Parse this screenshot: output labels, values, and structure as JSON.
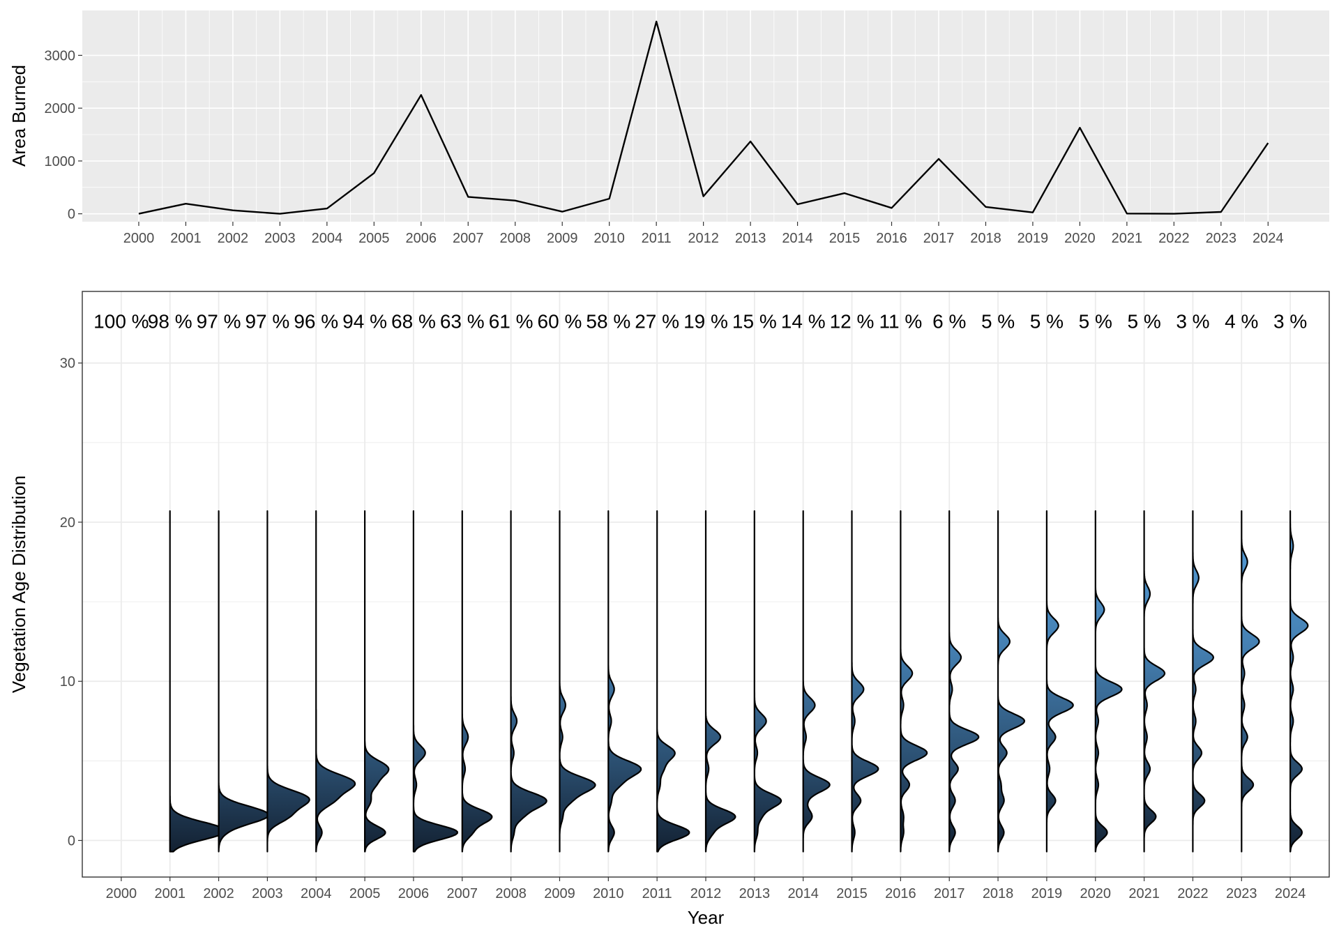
{
  "chart_data": [
    {
      "type": "line",
      "xlabel": "",
      "ylabel": "Area Burned",
      "x": [
        2000,
        2001,
        2002,
        2003,
        2004,
        2005,
        2006,
        2007,
        2008,
        2009,
        2010,
        2011,
        2012,
        2013,
        2014,
        2015,
        2016,
        2017,
        2018,
        2019,
        2020,
        2021,
        2022,
        2023,
        2024
      ],
      "y": [
        0,
        190,
        65,
        0,
        100,
        770,
        2250,
        320,
        250,
        40,
        285,
        3640,
        330,
        1370,
        180,
        390,
        110,
        1040,
        130,
        25,
        1630,
        5,
        0,
        35,
        1340
      ],
      "xlim": [
        1998.8,
        2025.3
      ],
      "ylim": [
        -150,
        3850
      ],
      "yticks": [
        0,
        1000,
        2000,
        3000
      ],
      "xticks": [
        2000,
        2001,
        2002,
        2003,
        2004,
        2005,
        2006,
        2007,
        2008,
        2009,
        2010,
        2011,
        2012,
        2013,
        2014,
        2015,
        2016,
        2017,
        2018,
        2019,
        2020,
        2021,
        2022,
        2023,
        2024
      ],
      "grid": true,
      "panel_background": "#ebebeb",
      "line_color": "#000000"
    },
    {
      "type": "ridgeline-halfviolin",
      "xlabel": "Year",
      "ylabel": "Vegetation Age Distribution",
      "categories": [
        2000,
        2001,
        2002,
        2003,
        2004,
        2005,
        2006,
        2007,
        2008,
        2009,
        2010,
        2011,
        2012,
        2013,
        2014,
        2015,
        2016,
        2017,
        2018,
        2019,
        2020,
        2021,
        2022,
        2023,
        2024
      ],
      "percent_labels": [
        "100 %",
        "98 %",
        "97 %",
        "97 %",
        "96 %",
        "94 %",
        "68 %",
        "63 %",
        "61 %",
        "60 %",
        "58 %",
        "27 %",
        "19 %",
        "15 %",
        "14 %",
        "12 %",
        "11 %",
        "6 %",
        "5 %",
        "5 %",
        "5 %",
        "5 %",
        "3 %",
        "4 %",
        "3 %"
      ],
      "ylim": [
        -2.3,
        34.5
      ],
      "yticks": [
        0,
        10,
        20,
        30
      ],
      "y_range_of_each_distribution": [
        -0.7,
        20.7
      ],
      "distribution_peaks": [
        {
          "year": 2000,
          "peaks": []
        },
        {
          "year": 2001,
          "peaks": [
            {
              "y": 0.6,
              "w": 0.95,
              "s": 0.55
            }
          ]
        },
        {
          "year": 2002,
          "peaks": [
            {
              "y": 0.5,
              "w": 0.05,
              "s": 0.4
            },
            {
              "y": 1.6,
              "w": 0.85,
              "s": 0.55
            }
          ]
        },
        {
          "year": 2003,
          "peaks": [
            {
              "y": 1.5,
              "w": 0.3,
              "s": 0.45
            },
            {
              "y": 2.6,
              "w": 0.7,
              "s": 0.55
            }
          ]
        },
        {
          "year": 2004,
          "peaks": [
            {
              "y": 0.5,
              "w": 0.1,
              "s": 0.4
            },
            {
              "y": 2.5,
              "w": 0.25,
              "s": 0.45
            },
            {
              "y": 3.6,
              "w": 0.65,
              "s": 0.55
            }
          ]
        },
        {
          "year": 2005,
          "peaks": [
            {
              "y": 0.5,
              "w": 0.35,
              "s": 0.4
            },
            {
              "y": 2.5,
              "w": 0.1,
              "s": 0.4
            },
            {
              "y": 3.5,
              "w": 0.15,
              "s": 0.4
            },
            {
              "y": 4.5,
              "w": 0.4,
              "s": 0.5
            }
          ]
        },
        {
          "year": 2006,
          "peaks": [
            {
              "y": 0.5,
              "w": 0.75,
              "s": 0.45
            },
            {
              "y": 3.5,
              "w": 0.05,
              "s": 0.4
            },
            {
              "y": 5.5,
              "w": 0.2,
              "s": 0.45
            }
          ]
        },
        {
          "year": 2007,
          "peaks": [
            {
              "y": 0.5,
              "w": 0.15,
              "s": 0.4
            },
            {
              "y": 1.5,
              "w": 0.5,
              "s": 0.45
            },
            {
              "y": 4.5,
              "w": 0.05,
              "s": 0.4
            },
            {
              "y": 6.5,
              "w": 0.1,
              "s": 0.45
            }
          ]
        },
        {
          "year": 2008,
          "peaks": [
            {
              "y": 0.5,
              "w": 0.05,
              "s": 0.4
            },
            {
              "y": 1.5,
              "w": 0.15,
              "s": 0.4
            },
            {
              "y": 2.5,
              "w": 0.6,
              "s": 0.5
            },
            {
              "y": 5.5,
              "w": 0.05,
              "s": 0.4
            },
            {
              "y": 7.5,
              "w": 0.1,
              "s": 0.45
            }
          ]
        },
        {
          "year": 2009,
          "peaks": [
            {
              "y": 1.5,
              "w": 0.05,
              "s": 0.4
            },
            {
              "y": 2.5,
              "w": 0.15,
              "s": 0.4
            },
            {
              "y": 3.5,
              "w": 0.6,
              "s": 0.5
            },
            {
              "y": 6.5,
              "w": 0.05,
              "s": 0.4
            },
            {
              "y": 8.5,
              "w": 0.1,
              "s": 0.45
            }
          ]
        },
        {
          "year": 2010,
          "peaks": [
            {
              "y": 0.5,
              "w": 0.1,
              "s": 0.4
            },
            {
              "y": 2.5,
              "w": 0.05,
              "s": 0.4
            },
            {
              "y": 3.5,
              "w": 0.15,
              "s": 0.4
            },
            {
              "y": 4.5,
              "w": 0.55,
              "s": 0.5
            },
            {
              "y": 7.5,
              "w": 0.05,
              "s": 0.4
            },
            {
              "y": 9.5,
              "w": 0.1,
              "s": 0.45
            }
          ]
        },
        {
          "year": 2011,
          "peaks": [
            {
              "y": 0.5,
              "w": 0.55,
              "s": 0.45
            },
            {
              "y": 3.5,
              "w": 0.05,
              "s": 0.4
            },
            {
              "y": 4.5,
              "w": 0.1,
              "s": 0.4
            },
            {
              "y": 5.5,
              "w": 0.3,
              "s": 0.45
            }
          ]
        },
        {
          "year": 2012,
          "peaks": [
            {
              "y": 0.5,
              "w": 0.1,
              "s": 0.4
            },
            {
              "y": 1.5,
              "w": 0.5,
              "s": 0.45
            },
            {
              "y": 4.5,
              "w": 0.05,
              "s": 0.4
            },
            {
              "y": 6.5,
              "w": 0.25,
              "s": 0.45
            }
          ]
        },
        {
          "year": 2013,
          "peaks": [
            {
              "y": 0.5,
              "w": 0.05,
              "s": 0.4
            },
            {
              "y": 1.5,
              "w": 0.1,
              "s": 0.4
            },
            {
              "y": 2.5,
              "w": 0.45,
              "s": 0.45
            },
            {
              "y": 5.5,
              "w": 0.05,
              "s": 0.4
            },
            {
              "y": 7.5,
              "w": 0.2,
              "s": 0.45
            }
          ]
        },
        {
          "year": 2014,
          "peaks": [
            {
              "y": 1.5,
              "w": 0.15,
              "s": 0.4
            },
            {
              "y": 2.5,
              "w": 0.05,
              "s": 0.4
            },
            {
              "y": 3.5,
              "w": 0.45,
              "s": 0.45
            },
            {
              "y": 6.5,
              "w": 0.05,
              "s": 0.4
            },
            {
              "y": 8.5,
              "w": 0.2,
              "s": 0.45
            }
          ]
        },
        {
          "year": 2015,
          "peaks": [
            {
              "y": 0.5,
              "w": 0.05,
              "s": 0.4
            },
            {
              "y": 2.5,
              "w": 0.15,
              "s": 0.4
            },
            {
              "y": 4.5,
              "w": 0.45,
              "s": 0.45
            },
            {
              "y": 7.5,
              "w": 0.05,
              "s": 0.4
            },
            {
              "y": 9.5,
              "w": 0.2,
              "s": 0.45
            }
          ]
        },
        {
          "year": 2016,
          "peaks": [
            {
              "y": 0.5,
              "w": 0.05,
              "s": 0.4
            },
            {
              "y": 1.5,
              "w": 0.05,
              "s": 0.4
            },
            {
              "y": 3.5,
              "w": 0.15,
              "s": 0.4
            },
            {
              "y": 5.5,
              "w": 0.45,
              "s": 0.45
            },
            {
              "y": 8.5,
              "w": 0.05,
              "s": 0.4
            },
            {
              "y": 10.5,
              "w": 0.2,
              "s": 0.45
            }
          ]
        },
        {
          "year": 2017,
          "peaks": [
            {
              "y": 0.5,
              "w": 0.1,
              "s": 0.4
            },
            {
              "y": 2.5,
              "w": 0.1,
              "s": 0.4
            },
            {
              "y": 4.5,
              "w": 0.15,
              "s": 0.4
            },
            {
              "y": 6.5,
              "w": 0.5,
              "s": 0.45
            },
            {
              "y": 9.5,
              "w": 0.05,
              "s": 0.4
            },
            {
              "y": 11.5,
              "w": 0.2,
              "s": 0.45
            }
          ]
        },
        {
          "year": 2018,
          "peaks": [
            {
              "y": 0.5,
              "w": 0.1,
              "s": 0.4
            },
            {
              "y": 2.5,
              "w": 0.1,
              "s": 0.4
            },
            {
              "y": 3.5,
              "w": 0.05,
              "s": 0.4
            },
            {
              "y": 5.5,
              "w": 0.15,
              "s": 0.4
            },
            {
              "y": 7.5,
              "w": 0.45,
              "s": 0.45
            },
            {
              "y": 12.5,
              "w": 0.2,
              "s": 0.45
            }
          ]
        },
        {
          "year": 2019,
          "peaks": [
            {
              "y": 2.5,
              "w": 0.15,
              "s": 0.4
            },
            {
              "y": 4.5,
              "w": 0.05,
              "s": 0.4
            },
            {
              "y": 6.5,
              "w": 0.15,
              "s": 0.4
            },
            {
              "y": 8.5,
              "w": 0.45,
              "s": 0.45
            },
            {
              "y": 13.5,
              "w": 0.2,
              "s": 0.45
            }
          ]
        },
        {
          "year": 2020,
          "peaks": [
            {
              "y": 0.5,
              "w": 0.2,
              "s": 0.4
            },
            {
              "y": 3.5,
              "w": 0.05,
              "s": 0.4
            },
            {
              "y": 5.5,
              "w": 0.05,
              "s": 0.4
            },
            {
              "y": 7.5,
              "w": 0.05,
              "s": 0.4
            },
            {
              "y": 9.5,
              "w": 0.45,
              "s": 0.45
            },
            {
              "y": 14.5,
              "w": 0.15,
              "s": 0.45
            }
          ]
        },
        {
          "year": 2021,
          "peaks": [
            {
              "y": 1.5,
              "w": 0.2,
              "s": 0.4
            },
            {
              "y": 4.5,
              "w": 0.1,
              "s": 0.4
            },
            {
              "y": 6.5,
              "w": 0.05,
              "s": 0.4
            },
            {
              "y": 8.5,
              "w": 0.05,
              "s": 0.4
            },
            {
              "y": 10.5,
              "w": 0.35,
              "s": 0.45
            },
            {
              "y": 15.5,
              "w": 0.1,
              "s": 0.45
            }
          ]
        },
        {
          "year": 2022,
          "peaks": [
            {
              "y": 2.5,
              "w": 0.2,
              "s": 0.4
            },
            {
              "y": 5.5,
              "w": 0.15,
              "s": 0.4
            },
            {
              "y": 7.5,
              "w": 0.05,
              "s": 0.4
            },
            {
              "y": 9.5,
              "w": 0.05,
              "s": 0.4
            },
            {
              "y": 11.5,
              "w": 0.35,
              "s": 0.45
            },
            {
              "y": 16.5,
              "w": 0.1,
              "s": 0.45
            }
          ]
        },
        {
          "year": 2023,
          "peaks": [
            {
              "y": 3.5,
              "w": 0.2,
              "s": 0.4
            },
            {
              "y": 6.5,
              "w": 0.1,
              "s": 0.4
            },
            {
              "y": 8.5,
              "w": 0.05,
              "s": 0.4
            },
            {
              "y": 10.5,
              "w": 0.05,
              "s": 0.4
            },
            {
              "y": 12.5,
              "w": 0.3,
              "s": 0.45
            },
            {
              "y": 17.5,
              "w": 0.1,
              "s": 0.45
            }
          ]
        },
        {
          "year": 2024,
          "peaks": [
            {
              "y": 0.5,
              "w": 0.2,
              "s": 0.4
            },
            {
              "y": 4.5,
              "w": 0.2,
              "s": 0.4
            },
            {
              "y": 7.5,
              "w": 0.05,
              "s": 0.4
            },
            {
              "y": 9.5,
              "w": 0.05,
              "s": 0.4
            },
            {
              "y": 11.5,
              "w": 0.05,
              "s": 0.4
            },
            {
              "y": 13.5,
              "w": 0.3,
              "s": 0.45
            },
            {
              "y": 18.5,
              "w": 0.05,
              "s": 0.45
            }
          ]
        }
      ],
      "fill_gradient": {
        "low": "#132132",
        "high": "#56a0dc"
      },
      "grid": true,
      "panel_background": "#ffffff",
      "outline_color": "#000000"
    }
  ]
}
